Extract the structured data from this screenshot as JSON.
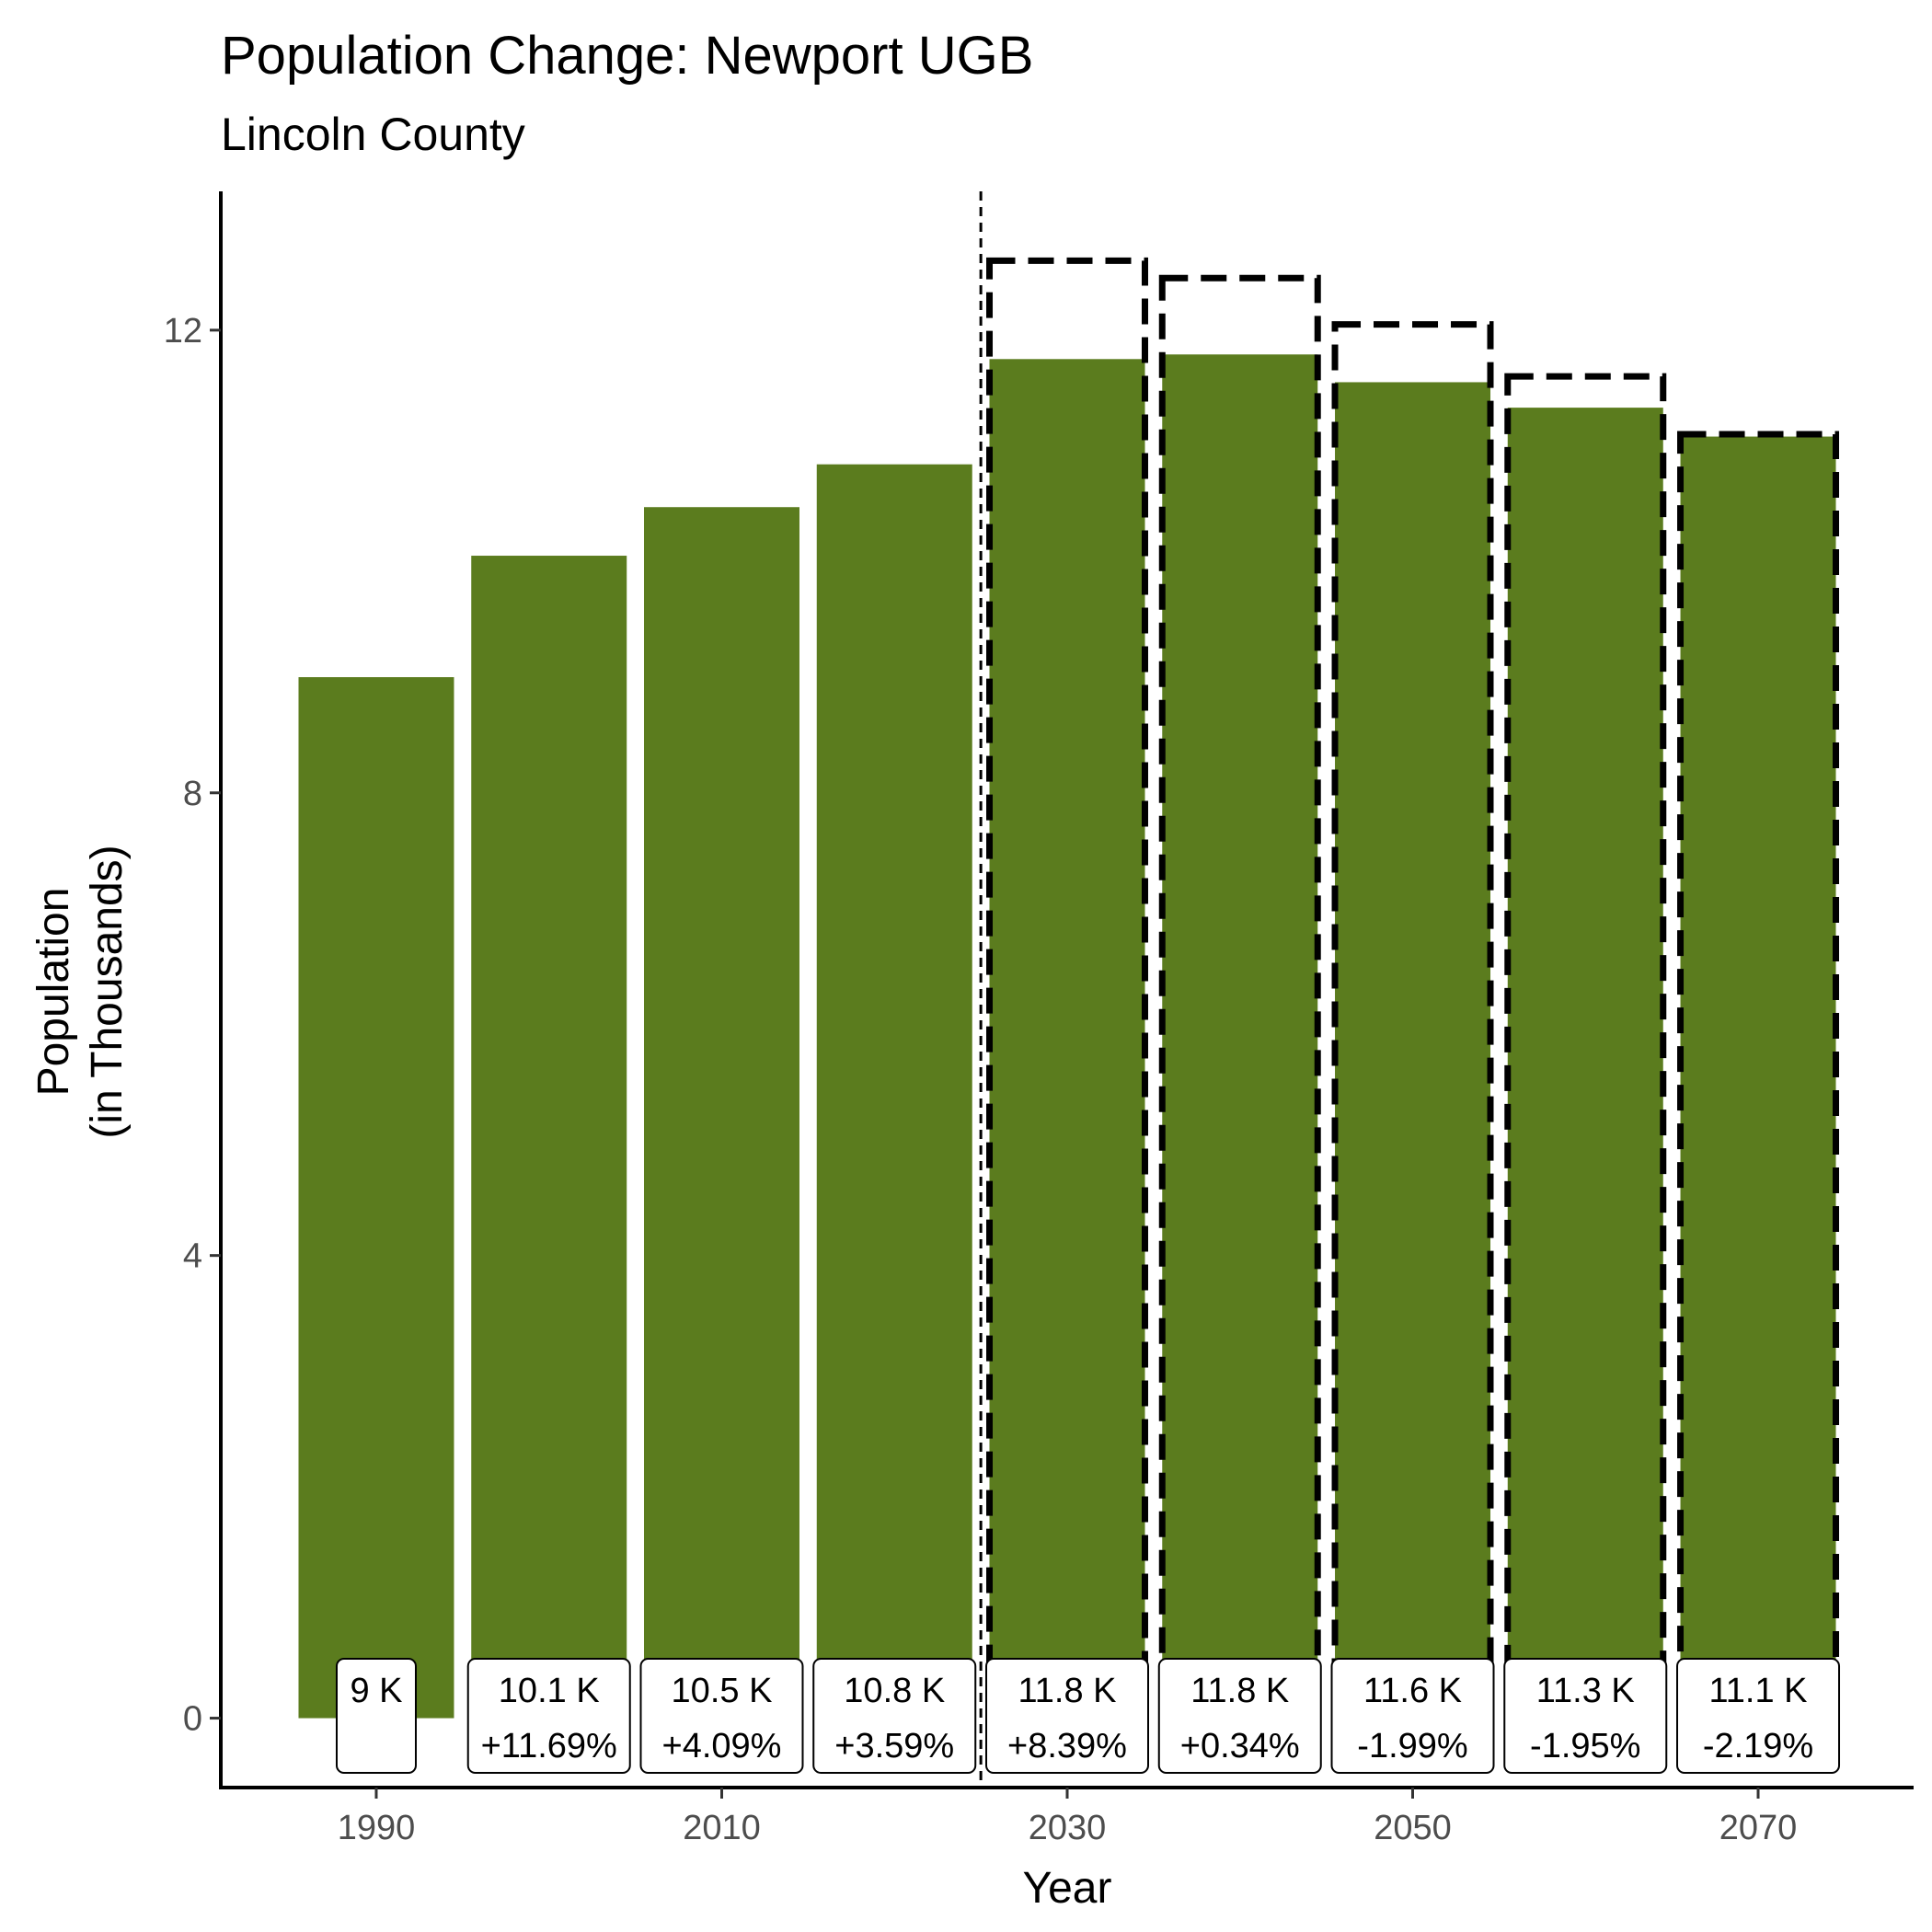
{
  "chart_data": {
    "type": "bar",
    "title": "Population Change: Newport UGB",
    "subtitle": "Lincoln County",
    "xlabel": "Year",
    "ylabel_line1": "Population",
    "ylabel_line2": "(in Thousands)",
    "ylim": [
      -0.6,
      13.2
    ],
    "xlim": [
      1981,
      2079
    ],
    "y_ticks": [
      0,
      4,
      8,
      12
    ],
    "x_ticks": [
      1990,
      2010,
      2030,
      2050,
      2070
    ],
    "bar_color": "#5b7c1e",
    "forecast_divider_x": 2025,
    "categories": [
      1990,
      2000,
      2010,
      2020,
      2030,
      2040,
      2050,
      2060,
      2070
    ],
    "series": [
      {
        "name": "Population",
        "values": [
          9.0,
          10.05,
          10.47,
          10.84,
          11.75,
          11.79,
          11.55,
          11.33,
          11.08
        ]
      },
      {
        "name": "Comparison forecast (dashed outline)",
        "x": [
          2030,
          2040,
          2050,
          2060,
          2070
        ],
        "values": [
          12.6,
          12.45,
          12.05,
          11.6,
          11.1
        ]
      }
    ],
    "annotations": [
      {
        "x": 1990,
        "value": "9 K",
        "change": ""
      },
      {
        "x": 2000,
        "value": "10.1 K",
        "change": "+11.69%"
      },
      {
        "x": 2010,
        "value": "10.5 K",
        "change": "+4.09%"
      },
      {
        "x": 2020,
        "value": "10.8 K",
        "change": "+3.59%"
      },
      {
        "x": 2030,
        "value": "11.8 K",
        "change": "+8.39%"
      },
      {
        "x": 2040,
        "value": "11.8 K",
        "change": "+0.34%"
      },
      {
        "x": 2050,
        "value": "11.6 K",
        "change": "-1.99%"
      },
      {
        "x": 2060,
        "value": "11.3 K",
        "change": "-1.95%"
      },
      {
        "x": 2070,
        "value": "11.1 K",
        "change": "-2.19%"
      }
    ]
  }
}
